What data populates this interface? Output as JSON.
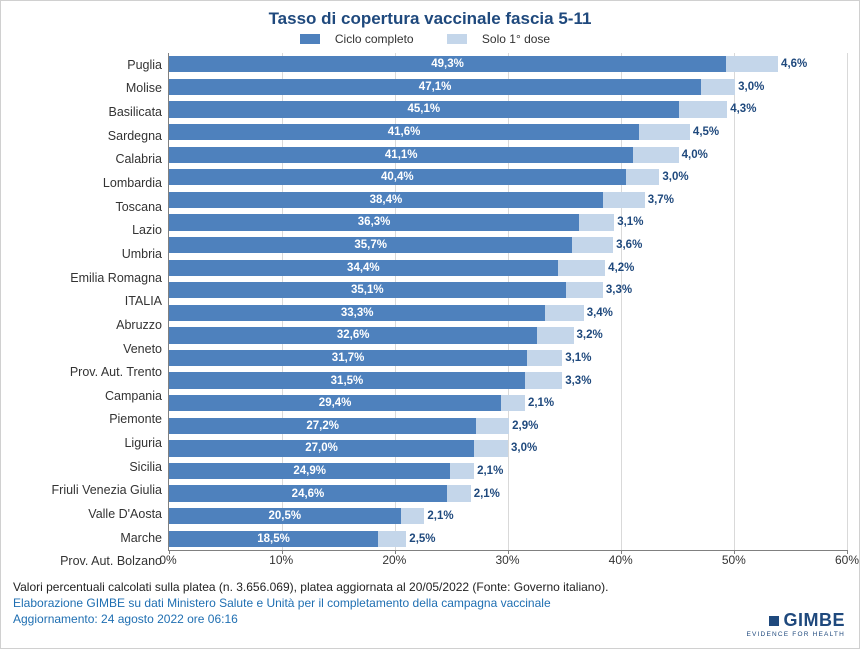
{
  "chart": {
    "type": "stacked-horizontal-bar",
    "title": "Tasso di copertura vaccinale fascia 5-11",
    "title_color": "#1f497d",
    "title_fontsize": 17,
    "background_color": "#ffffff",
    "grid_color": "#d9d9d9",
    "axis_color": "#808080",
    "label_fontsize": 12.5,
    "value_fontsize": 11.5,
    "xlim": [
      0,
      60
    ],
    "xtick_step": 10,
    "xticks": [
      "0%",
      "10%",
      "20%",
      "30%",
      "40%",
      "50%",
      "60%"
    ],
    "legend": [
      {
        "label": "Ciclo completo",
        "color": "#4e81bd"
      },
      {
        "label": "Solo 1° dose",
        "color": "#c4d6ea"
      }
    ],
    "series_colors": {
      "ciclo_completo": "#4e81bd",
      "solo_prima_dose": "#c4d6ea"
    },
    "regions": [
      {
        "name": "Puglia",
        "ciclo": 49.3,
        "dose1": 4.6,
        "ciclo_label": "49,3%",
        "dose1_label": "4,6%"
      },
      {
        "name": "Molise",
        "ciclo": 47.1,
        "dose1": 3.0,
        "ciclo_label": "47,1%",
        "dose1_label": "3,0%"
      },
      {
        "name": "Basilicata",
        "ciclo": 45.1,
        "dose1": 4.3,
        "ciclo_label": "45,1%",
        "dose1_label": "4,3%"
      },
      {
        "name": "Sardegna",
        "ciclo": 41.6,
        "dose1": 4.5,
        "ciclo_label": "41,6%",
        "dose1_label": "4,5%"
      },
      {
        "name": "Calabria",
        "ciclo": 41.1,
        "dose1": 4.0,
        "ciclo_label": "41,1%",
        "dose1_label": "4,0%"
      },
      {
        "name": "Lombardia",
        "ciclo": 40.4,
        "dose1": 3.0,
        "ciclo_label": "40,4%",
        "dose1_label": "3,0%"
      },
      {
        "name": "Toscana",
        "ciclo": 38.4,
        "dose1": 3.7,
        "ciclo_label": "38,4%",
        "dose1_label": "3,7%"
      },
      {
        "name": "Lazio",
        "ciclo": 36.3,
        "dose1": 3.1,
        "ciclo_label": "36,3%",
        "dose1_label": "3,1%"
      },
      {
        "name": "Umbria",
        "ciclo": 35.7,
        "dose1": 3.6,
        "ciclo_label": "35,7%",
        "dose1_label": "3,6%"
      },
      {
        "name": "Emilia Romagna",
        "ciclo": 34.4,
        "dose1": 4.2,
        "ciclo_label": "34,4%",
        "dose1_label": "4,2%"
      },
      {
        "name": "ITALIA",
        "ciclo": 35.1,
        "dose1": 3.3,
        "ciclo_label": "35,1%",
        "dose1_label": "3,3%"
      },
      {
        "name": "Abruzzo",
        "ciclo": 33.3,
        "dose1": 3.4,
        "ciclo_label": "33,3%",
        "dose1_label": "3,4%"
      },
      {
        "name": "Veneto",
        "ciclo": 32.6,
        "dose1": 3.2,
        "ciclo_label": "32,6%",
        "dose1_label": "3,2%"
      },
      {
        "name": "Prov. Aut. Trento",
        "ciclo": 31.7,
        "dose1": 3.1,
        "ciclo_label": "31,7%",
        "dose1_label": "3,1%"
      },
      {
        "name": "Campania",
        "ciclo": 31.5,
        "dose1": 3.3,
        "ciclo_label": "31,5%",
        "dose1_label": "3,3%"
      },
      {
        "name": "Piemonte",
        "ciclo": 29.4,
        "dose1": 2.1,
        "ciclo_label": "29,4%",
        "dose1_label": "2,1%"
      },
      {
        "name": "Liguria",
        "ciclo": 27.2,
        "dose1": 2.9,
        "ciclo_label": "27,2%",
        "dose1_label": "2,9%"
      },
      {
        "name": "Sicilia",
        "ciclo": 27.0,
        "dose1": 3.0,
        "ciclo_label": "27,0%",
        "dose1_label": "3,0%"
      },
      {
        "name": "Friuli Venezia Giulia",
        "ciclo": 24.9,
        "dose1": 2.1,
        "ciclo_label": "24,9%",
        "dose1_label": "2,1%"
      },
      {
        "name": "Valle D'Aosta",
        "ciclo": 24.6,
        "dose1": 2.1,
        "ciclo_label": "24,6%",
        "dose1_label": "2,1%"
      },
      {
        "name": "Marche",
        "ciclo": 20.5,
        "dose1": 2.1,
        "ciclo_label": "20,5%",
        "dose1_label": "2,1%"
      },
      {
        "name": "Prov. Aut. Bolzano",
        "ciclo": 18.5,
        "dose1": 2.5,
        "ciclo_label": "18,5%",
        "dose1_label": "2,5%"
      }
    ]
  },
  "footer": {
    "note": "Valori percentuali calcolati sulla platea (n. 3.656.069), platea aggiornata al 20/05/2022 (Fonte: Governo italiano).",
    "source": "Elaborazione GIMBE su dati Ministero Salute e Unità per il completamento della campagna vaccinale",
    "update": "Aggiornamento: 24 agosto 2022 ore 06:16"
  },
  "brand": {
    "name": "GIMBE",
    "tagline": "EVIDENCE FOR HEALTH",
    "color": "#1f497d"
  }
}
